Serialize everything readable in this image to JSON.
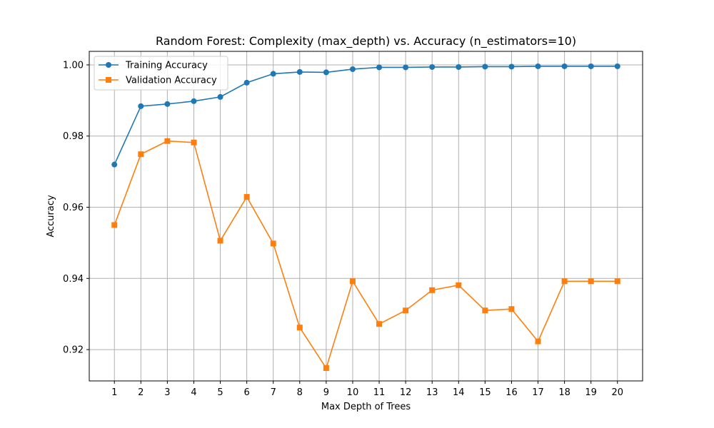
{
  "chart_data": {
    "type": "line",
    "title": "Random Forest: Complexity (max_depth) vs. Accuracy (n_estimators=10)",
    "xlabel": "Max Depth of Trees",
    "ylabel": "Accuracy",
    "x": [
      1,
      2,
      3,
      4,
      5,
      6,
      7,
      8,
      9,
      10,
      11,
      12,
      13,
      14,
      15,
      16,
      17,
      18,
      19,
      20
    ],
    "xticks": [
      "1",
      "2",
      "3",
      "4",
      "5",
      "6",
      "7",
      "8",
      "9",
      "10",
      "11",
      "12",
      "13",
      "14",
      "15",
      "16",
      "17",
      "18",
      "19",
      "20"
    ],
    "yticks": [
      0.92,
      0.94,
      0.96,
      0.98,
      1.0
    ],
    "ytick_labels": [
      "0.92",
      "0.94",
      "0.96",
      "0.98",
      "1.00"
    ],
    "xlim": [
      0.05,
      20.95
    ],
    "ylim": [
      0.9112,
      1.0038
    ],
    "grid": true,
    "legend_position": "top-left",
    "series": [
      {
        "name": "Training Accuracy",
        "color": "#1f77b4",
        "marker": "circle",
        "values": [
          0.972,
          0.9884,
          0.989,
          0.9898,
          0.991,
          0.995,
          0.9975,
          0.998,
          0.9979,
          0.9988,
          0.9993,
          0.9993,
          0.9994,
          0.9994,
          0.9995,
          0.9995,
          0.9996,
          0.9996,
          0.9996,
          0.9996
        ]
      },
      {
        "name": "Validation Accuracy",
        "color": "#ff7f0e",
        "marker": "square",
        "values": [
          0.955,
          0.9749,
          0.9786,
          0.9782,
          0.9506,
          0.9629,
          0.9498,
          0.9262,
          0.9148,
          0.9392,
          0.9272,
          0.931,
          0.9367,
          0.9381,
          0.931,
          0.9314,
          0.9223,
          0.9392,
          0.9392,
          0.9392
        ]
      }
    ]
  }
}
